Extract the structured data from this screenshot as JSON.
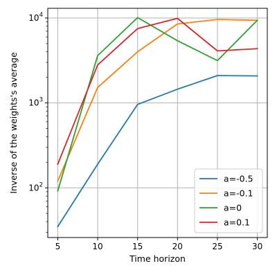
{
  "chart_data": {
    "type": "line",
    "title": "",
    "xlabel": "Time horizon",
    "ylabel": "Inverse of the weights's average",
    "x": [
      5,
      10,
      15,
      20,
      25,
      30
    ],
    "xlim": [
      3.75,
      31.25
    ],
    "ylim": [
      26,
      13000
    ],
    "yscale": "log",
    "grid": true,
    "legend_position": "lower right",
    "x_ticks": [
      5,
      10,
      15,
      20,
      25,
      30
    ],
    "y_major_ticks": [
      {
        "value": 100,
        "base": "10",
        "exp": "2"
      },
      {
        "value": 1000,
        "base": "10",
        "exp": "3"
      },
      {
        "value": 10000,
        "base": "10",
        "exp": "4"
      }
    ],
    "series": [
      {
        "name": "a=-0.5",
        "color": "#1f77b4",
        "values": [
          35,
          190,
          960,
          1450,
          2100,
          2080
        ]
      },
      {
        "name": "a=-0.1",
        "color": "#ff7f0e",
        "values": [
          120,
          1520,
          4000,
          8500,
          9600,
          9400
        ]
      },
      {
        "name": "a=0",
        "color": "#2ca02c",
        "values": [
          92,
          3600,
          10100,
          5400,
          3150,
          9400
        ]
      },
      {
        "name": "a=0.1",
        "color": "#d62728",
        "values": [
          190,
          2800,
          7500,
          9900,
          4100,
          4350
        ]
      }
    ]
  }
}
